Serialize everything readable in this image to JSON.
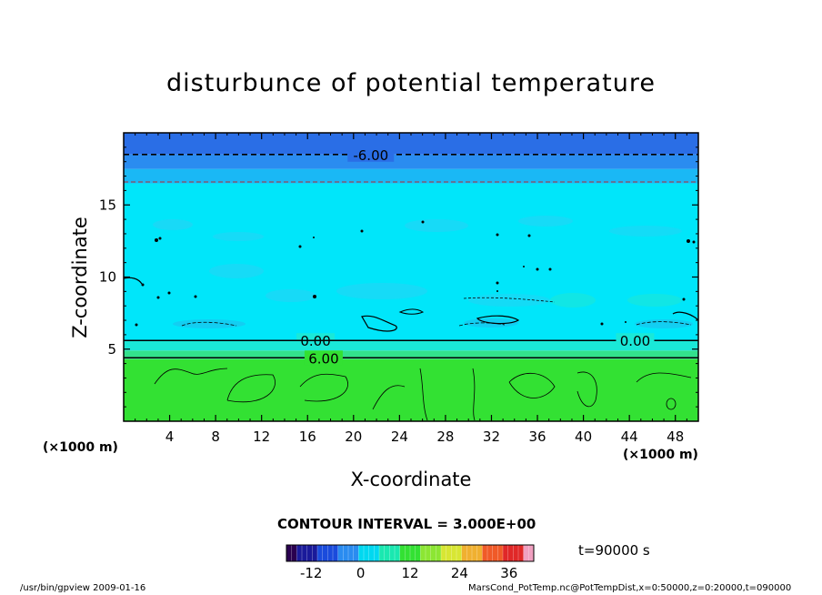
{
  "chart_data": {
    "type": "heatmap",
    "title": "disturbunce of potential temperature",
    "xlabel": "X-coordinate",
    "ylabel": "Z-coordinate",
    "x_unit": "(×1000 m)",
    "y_unit": "(×1000 m)",
    "x_ticks": [
      4,
      8,
      12,
      16,
      20,
      24,
      28,
      32,
      36,
      40,
      44,
      48
    ],
    "y_ticks": [
      5,
      10,
      15
    ],
    "xlim": [
      0,
      50
    ],
    "ylim": [
      0,
      20
    ],
    "grid": false,
    "layers": [
      {
        "z_from": 0,
        "z_to": 4.3,
        "value": 9,
        "color": "#33e133"
      },
      {
        "z_from": 4.3,
        "z_to": 4.9,
        "value": 3,
        "color": "#33e18c"
      },
      {
        "z_from": 4.9,
        "z_to": 5.6,
        "value": 0,
        "color": "#1ae8d8"
      },
      {
        "z_from": 5.6,
        "z_to": 16.5,
        "value": -1.5,
        "color": "#00e6fa"
      },
      {
        "z_from": 16.5,
        "z_to": 17.5,
        "value": -4.5,
        "color": "#1ab8f5"
      },
      {
        "z_from": 17.5,
        "z_to": 18.5,
        "value": -6,
        "color": "#2a8cf0"
      },
      {
        "z_from": 18.5,
        "z_to": 20,
        "value": -7.5,
        "color": "#2a6ee6"
      }
    ],
    "contour_lines": [
      {
        "label": "-6.00",
        "z": 18.5,
        "style": "dashed",
        "label_x": 21.5
      },
      {
        "label": "0.00",
        "z": 5.6,
        "style": "solid",
        "label_x": 16.7
      },
      {
        "label": "0.00",
        "z": 5.6,
        "style": "solid",
        "label_x": 44.5
      },
      {
        "label": "6.00",
        "z": 4.4,
        "style": "solid",
        "label_x": 17.4
      }
    ],
    "contour_interval": "CONTOUR INTERVAL = 3.000E+00",
    "colorbar": {
      "ticks": [
        "-12",
        "0",
        "12",
        "24",
        "36"
      ],
      "tick_values": [
        -12,
        0,
        12,
        24,
        36
      ],
      "range": [
        -18,
        42
      ]
    },
    "time": "t=90000  s"
  },
  "footer": {
    "left": "/usr/bin/gpview   2009-01-16",
    "right": "MarsCond_PotTemp.nc@PotTempDist,x=0:50000,z=0:20000,t=090000"
  }
}
